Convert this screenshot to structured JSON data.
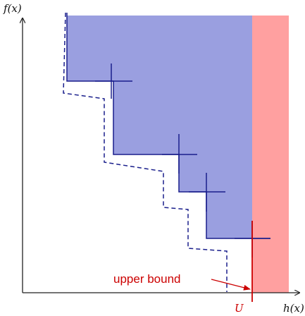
{
  "axes": {
    "y_label": "f(x)",
    "x_label": "h(x)"
  },
  "bound": {
    "marker_label": "U",
    "annotation": "upper bound"
  },
  "colors": {
    "dominated_region": "#9a9fe0",
    "infeasible_region": "#ffa0a0",
    "front_line": "#1a1f8c",
    "bound_line": "#cc0000",
    "axis": "#222222"
  }
}
